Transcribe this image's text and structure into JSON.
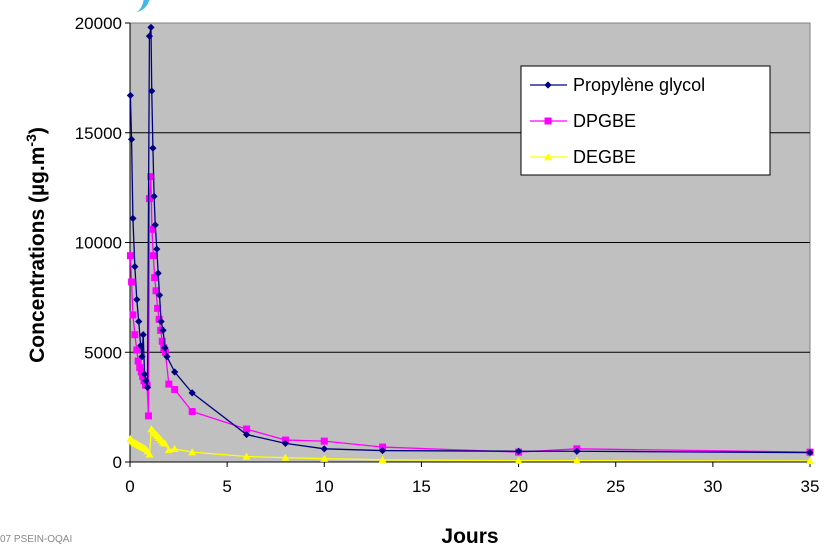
{
  "footer_text": "07  PSEIN-OQAI",
  "colors": {
    "plot_background": "#c0c0c0",
    "logo_accent": "#43b8e6"
  },
  "chart_data": {
    "type": "line",
    "title": "",
    "xlabel": "Jours",
    "ylabel": "Concentrations (µg.m",
    "ylabel_sup": "-3",
    "ylabel_suffix": ")",
    "xlim": [
      0,
      35
    ],
    "ylim": [
      0,
      20000
    ],
    "xticks": [
      0,
      5,
      10,
      15,
      20,
      25,
      30,
      35
    ],
    "yticks": [
      0,
      5000,
      10000,
      15000,
      20000
    ],
    "grid": "horizontal",
    "legend_position": "top-right",
    "series": [
      {
        "name": "Propylène glycol",
        "color": "#000080",
        "marker": "diamond",
        "x": [
          0.02,
          0.08,
          0.15,
          0.25,
          0.35,
          0.45,
          0.55,
          0.62,
          0.68,
          0.75,
          0.82,
          0.9,
          1.0,
          1.08,
          1.12,
          1.18,
          1.24,
          1.3,
          1.38,
          1.45,
          1.52,
          1.6,
          1.7,
          1.8,
          1.9,
          2.3,
          3.2,
          6.0,
          8.0,
          10.0,
          13.0,
          20.0,
          23.0,
          35.0
        ],
        "y": [
          16700,
          14700,
          11100,
          8900,
          7400,
          6400,
          5300,
          4800,
          5800,
          4000,
          3700,
          3400,
          19400,
          19800,
          16900,
          14300,
          12100,
          10800,
          9700,
          8600,
          7600,
          6400,
          6000,
          5200,
          4800,
          4100,
          3150,
          1250,
          850,
          600,
          520,
          490,
          490,
          430
        ]
      },
      {
        "name": "DPGBE",
        "color": "#ff00ff",
        "marker": "square",
        "x": [
          0.02,
          0.08,
          0.15,
          0.25,
          0.35,
          0.42,
          0.5,
          0.58,
          0.65,
          0.72,
          0.8,
          0.88,
          0.95,
          1.0,
          1.07,
          1.13,
          1.2,
          1.27,
          1.34,
          1.42,
          1.5,
          1.58,
          1.66,
          1.74,
          1.82,
          2.0,
          2.3,
          3.2,
          6.0,
          8.0,
          10.0,
          13.0,
          20.0,
          23.0,
          35.0
        ],
        "y": [
          9400,
          8200,
          6700,
          5800,
          5100,
          4600,
          4300,
          4100,
          3900,
          3700,
          3500,
          3500,
          2100,
          12000,
          13000,
          10600,
          9400,
          8400,
          7800,
          7000,
          6500,
          6000,
          5500,
          5200,
          5000,
          3550,
          3300,
          2300,
          1500,
          1000,
          950,
          680,
          450,
          600,
          450
        ]
      },
      {
        "name": "DEGBE",
        "color": "#ffff00",
        "marker": "triangle",
        "x": [
          0.02,
          0.1,
          0.2,
          0.3,
          0.4,
          0.5,
          0.6,
          0.7,
          0.8,
          0.9,
          1.0,
          1.1,
          1.2,
          1.3,
          1.4,
          1.5,
          1.6,
          1.7,
          1.8,
          2.0,
          2.3,
          3.2,
          6.0,
          8.0,
          10.0,
          13.0,
          20.0,
          23.0,
          35.0
        ],
        "y": [
          1050,
          950,
          900,
          850,
          800,
          750,
          700,
          650,
          600,
          500,
          350,
          1500,
          1400,
          1300,
          1200,
          1100,
          1000,
          900,
          850,
          550,
          600,
          450,
          250,
          200,
          150,
          100,
          60,
          60,
          50
        ]
      }
    ]
  }
}
